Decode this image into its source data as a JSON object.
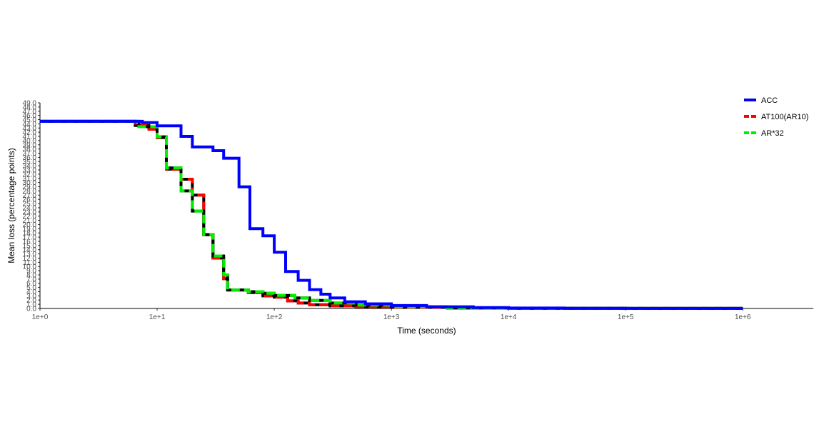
{
  "chart_data": {
    "type": "line",
    "step": true,
    "xscale": "log10",
    "xlabel": "Time (seconds)",
    "ylabel": "Mean loss (percentage points)",
    "xlim": [
      1,
      4000000
    ],
    "ylim": [
      0,
      49
    ],
    "x_ticks": [
      1,
      10,
      100,
      1000,
      10000,
      100000,
      1000000
    ],
    "x_tick_labels": [
      "1e+0",
      "1e+1",
      "1e+2",
      "1e+3",
      "1e+4",
      "1e+5",
      "1e+6"
    ],
    "y_ticks": [
      0,
      1,
      2,
      3,
      4,
      5,
      6,
      7,
      8,
      9,
      10,
      11,
      12,
      13,
      14,
      15,
      16,
      17,
      18,
      19,
      20,
      21,
      22,
      23,
      24,
      25,
      26,
      27,
      28,
      29,
      30,
      31,
      32,
      33,
      34,
      35,
      36,
      37,
      38,
      39,
      40,
      41,
      42,
      43,
      44,
      45,
      46,
      47,
      48,
      49
    ],
    "y_tick_labels": [
      "0.0",
      "1.0",
      "2.0",
      "3.0",
      "4.0",
      "5.0",
      "6.0",
      "7.0",
      "8.0",
      "9.0",
      "10.0",
      "11.0",
      "12.0",
      "13.0",
      "14.0",
      "15.0",
      "16.0",
      "17.0",
      "18.0",
      "19.0",
      "20.0",
      "21.0",
      "22.0",
      "23.0",
      "24.0",
      "25.0",
      "26.0",
      "27.0",
      "28.0",
      "29.0",
      "30.0",
      "31.0",
      "32.0",
      "33.0",
      "34.0",
      "35.0",
      "36.0",
      "37.0",
      "38.0",
      "39.0",
      "40.0",
      "41.0",
      "42.0",
      "43.0",
      "44.0",
      "45.0",
      "46.0",
      "47.0",
      "48.0",
      "49.0"
    ],
    "grid": false,
    "legend_position": "right",
    "series": [
      {
        "name": "ACC",
        "color": "#0000ff",
        "dash": "solid",
        "x": [
          1,
          7.5,
          10,
          16,
          20,
          30,
          37,
          50,
          62,
          80,
          100,
          125,
          160,
          200,
          250,
          300,
          400,
          600,
          1000,
          2000,
          5000,
          10000,
          30000,
          100000,
          1000000
        ],
        "values": [
          44.6,
          44.3,
          43.5,
          41.0,
          38.5,
          37.6,
          35.8,
          29.0,
          19.0,
          17.3,
          13.4,
          8.8,
          6.7,
          4.5,
          3.4,
          2.5,
          1.6,
          1.1,
          0.7,
          0.4,
          0.2,
          0.1,
          0.05,
          0.02,
          0.01
        ]
      },
      {
        "name": "AT100(AR10)",
        "color": "#ff0000",
        "dash": "dashed",
        "x": [
          1,
          6.5,
          8.5,
          10,
          12,
          16,
          20,
          25,
          30,
          37,
          40,
          60,
          80,
          100,
          130,
          160,
          200,
          300,
          500,
          1000,
          3000,
          10000,
          100000,
          1000000
        ],
        "values": [
          44.6,
          43.6,
          42.7,
          40.7,
          33.2,
          30.8,
          27.0,
          17.6,
          12.0,
          7.1,
          4.4,
          3.8,
          3.0,
          2.7,
          1.8,
          1.3,
          0.9,
          0.6,
          0.4,
          0.25,
          0.1,
          0.05,
          0.02,
          0.01
        ]
      },
      {
        "name": "AR*32",
        "color": "#00ee00",
        "dash": "dashed",
        "x": [
          1,
          7,
          10,
          12,
          16,
          20,
          25,
          30,
          37,
          40,
          60,
          80,
          100,
          150,
          200,
          300,
          500,
          1000,
          3000,
          10000,
          100000,
          1000000
        ],
        "values": [
          44.6,
          43.3,
          40.9,
          33.5,
          28.0,
          23.2,
          17.6,
          12.5,
          8.0,
          4.4,
          4.0,
          3.6,
          3.1,
          2.5,
          1.9,
          1.3,
          0.8,
          0.4,
          0.15,
          0.05,
          0.02,
          0.01
        ]
      }
    ]
  }
}
